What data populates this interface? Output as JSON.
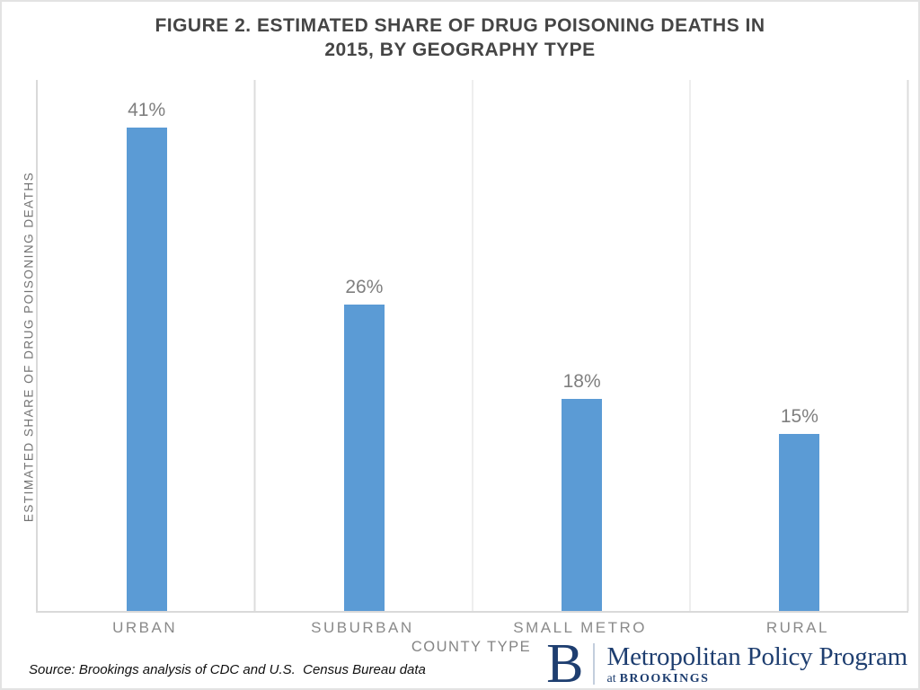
{
  "figure": {
    "title_line1": "FIGURE 2. ESTIMATED SHARE OF DRUG POISONING DEATHS IN",
    "title_line2": "2015, BY GEOGRAPHY TYPE"
  },
  "chart_data": {
    "type": "bar",
    "title": "FIGURE 2. ESTIMATED SHARE OF DRUG POISONING DEATHS IN 2015, BY GEOGRAPHY TYPE",
    "categories": [
      "URBAN",
      "SUBURBAN",
      "SMALL METRO",
      "RURAL"
    ],
    "values": [
      41,
      26,
      18,
      15
    ],
    "data_labels": [
      "41%",
      "26%",
      "18%",
      "15%"
    ],
    "xlabel": "COUNTY TYPE",
    "ylabel": "ESTIMATED  SHARE  OF  DRUG POISONING  DEATHS",
    "ylim": [
      0,
      45
    ],
    "bar_color": "#5B9BD5",
    "grid": "vertical-category-boundaries",
    "legend": "none",
    "y_axis_ticks": "none (values shown as data labels above bars)"
  },
  "source_note": "Source: Brookings analysis of CDC and U.S.  Census Bureau data",
  "logo": {
    "initial": "B",
    "program": "Metropolitan Policy Program",
    "sub_prefix": "at",
    "sub_name": "BROOKINGS",
    "navy_color": "#1e3e70"
  }
}
